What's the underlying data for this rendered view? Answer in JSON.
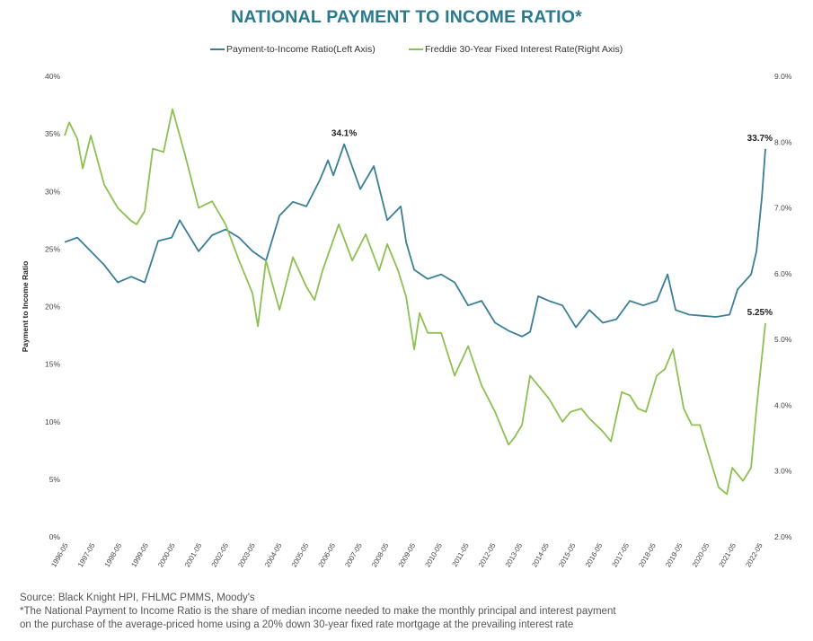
{
  "chart_data": {
    "type": "line",
    "title": "NATIONAL PAYMENT TO INCOME RATIO*",
    "ylabel": "Payment to Income Ratio",
    "ylabel_right": "",
    "xlabel": "",
    "x_tick_labels": [
      "1996-05",
      "1997-05",
      "1998-05",
      "1999-05",
      "2000-05",
      "2001-05",
      "2002-05",
      "2003-05",
      "2004-05",
      "2005-05",
      "2006-05",
      "2007-05",
      "2008-05",
      "2009-05",
      "2010-05",
      "2011-05",
      "2012-05",
      "2013-05",
      "2014-05",
      "2015-05",
      "2016-05",
      "2017-05",
      "2018-05",
      "2019-05",
      "2020-05",
      "2021-05",
      "2022-05"
    ],
    "y_left_ticks": [
      "0%",
      "5%",
      "10%",
      "15%",
      "20%",
      "25%",
      "30%",
      "35%",
      "40%"
    ],
    "y_right_ticks": [
      "2.0%",
      "3.0%",
      "4.0%",
      "5.0%",
      "6.0%",
      "7.0%",
      "8.0%",
      "9.0%"
    ],
    "ylim_left": [
      0,
      40
    ],
    "ylim_right": [
      2,
      9
    ],
    "xlim": [
      1996.33,
      2022.33
    ],
    "grid": false,
    "legend_position": "top-center",
    "series": [
      {
        "name": "Payment-to-Income Ratio(Left Axis)",
        "axis": "left",
        "color": "#3a7f97",
        "x": [
          1996.33,
          1996.8,
          1997.3,
          1997.8,
          1998.3,
          1998.8,
          1999.3,
          1999.8,
          2000.3,
          2000.6,
          2001.3,
          2001.8,
          2002.3,
          2002.8,
          2003.3,
          2003.8,
          2004.3,
          2004.8,
          2005.3,
          2005.8,
          2006.1,
          2006.3,
          2006.7,
          2007.3,
          2007.8,
          2008.3,
          2008.8,
          2009.0,
          2009.3,
          2009.8,
          2010.3,
          2010.8,
          2011.3,
          2011.8,
          2012.3,
          2012.8,
          2013.3,
          2013.6,
          2013.9,
          2014.3,
          2014.8,
          2015.3,
          2015.8,
          2016.3,
          2016.8,
          2017.3,
          2017.8,
          2018.3,
          2018.7,
          2019.0,
          2019.5,
          2020.0,
          2020.5,
          2021.0,
          2021.3,
          2021.8,
          2022.0,
          2022.2,
          2022.33
        ],
        "y": [
          25.6,
          26.0,
          24.8,
          23.6,
          22.1,
          22.6,
          22.1,
          25.7,
          26.0,
          27.5,
          24.8,
          26.2,
          26.7,
          26.0,
          24.8,
          24.0,
          27.9,
          29.1,
          28.7,
          31.0,
          32.7,
          31.4,
          34.1,
          30.2,
          32.2,
          27.5,
          28.7,
          25.6,
          23.2,
          22.4,
          22.8,
          22.1,
          20.1,
          20.5,
          18.6,
          17.9,
          17.4,
          17.8,
          20.9,
          20.5,
          20.1,
          18.2,
          19.7,
          18.6,
          18.9,
          20.5,
          20.1,
          20.5,
          22.8,
          19.7,
          19.3,
          19.2,
          19.1,
          19.3,
          21.5,
          22.8,
          24.8,
          29.5,
          33.7
        ]
      },
      {
        "name": "Freddie 30-Year Fixed Interest Rate(Right Axis)",
        "axis": "right",
        "color": "#8cc152",
        "x": [
          1996.33,
          1996.5,
          1996.8,
          1997.0,
          1997.3,
          1997.8,
          1998.3,
          1998.8,
          1999.0,
          1999.3,
          1999.6,
          2000.0,
          2000.33,
          2000.8,
          2001.3,
          2001.8,
          2002.3,
          2002.8,
          2003.3,
          2003.5,
          2003.8,
          2004.3,
          2004.8,
          2005.3,
          2005.6,
          2005.9,
          2006.5,
          2007.0,
          2007.5,
          2008.0,
          2008.3,
          2008.7,
          2009.0,
          2009.3,
          2009.5,
          2009.8,
          2010.3,
          2010.8,
          2011.3,
          2011.8,
          2012.3,
          2012.8,
          2013.0,
          2013.3,
          2013.6,
          2013.9,
          2014.3,
          2014.8,
          2015.1,
          2015.5,
          2015.8,
          2016.3,
          2016.6,
          2017.0,
          2017.3,
          2017.6,
          2017.9,
          2018.3,
          2018.6,
          2018.9,
          2019.3,
          2019.6,
          2019.9,
          2020.3,
          2020.6,
          2020.9,
          2021.1,
          2021.5,
          2021.8,
          2022.0,
          2022.33
        ],
        "y": [
          8.1,
          8.3,
          8.05,
          7.6,
          8.1,
          7.35,
          7.0,
          6.8,
          6.75,
          6.95,
          7.9,
          7.85,
          8.5,
          7.8,
          7.0,
          7.1,
          6.75,
          6.2,
          5.7,
          5.2,
          6.2,
          5.45,
          6.25,
          5.8,
          5.6,
          6.05,
          6.75,
          6.2,
          6.6,
          6.05,
          6.45,
          6.05,
          5.65,
          4.85,
          5.4,
          5.1,
          5.1,
          4.45,
          4.9,
          4.3,
          3.9,
          3.4,
          3.5,
          3.7,
          4.45,
          4.3,
          4.1,
          3.75,
          3.9,
          3.95,
          3.8,
          3.6,
          3.45,
          4.2,
          4.15,
          3.95,
          3.9,
          4.45,
          4.55,
          4.85,
          3.95,
          3.7,
          3.7,
          3.15,
          2.75,
          2.65,
          3.05,
          2.85,
          3.05,
          3.95,
          5.25
        ]
      }
    ],
    "annotations": [
      {
        "text": "34.1%",
        "series": 0,
        "x": 2006.7,
        "y": 34.1
      },
      {
        "text": "33.7%",
        "series": 0,
        "x": 2022.33,
        "y": 33.7
      },
      {
        "text": "5.25%",
        "series": 1,
        "x": 2022.33,
        "y": 5.25
      }
    ]
  },
  "footer": {
    "source": "Source: Black Knight HPI, FHLMC PMMS, Moody's",
    "note_line1": "*The National Payment to Income Ratio is the share of median income needed to make the monthly principal and interest payment",
    "note_line2": "on the purchase of the average-priced home using a 20% down 30-year fixed rate mortgage at the prevailing interest rate"
  }
}
